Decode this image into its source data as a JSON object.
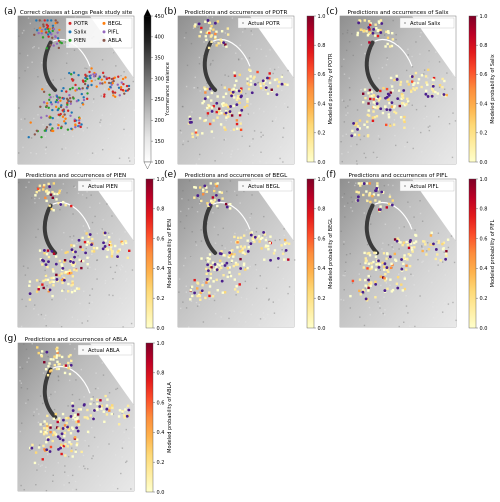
{
  "chart_data": [
    {
      "panel": "(a)",
      "type": "scatter",
      "title": "Correct classes at Longs Peak study site",
      "legend": [
        "POTR",
        "Salix",
        "PIEN",
        "BEGL",
        "PIFL",
        "ABLA"
      ],
      "legend_colors": [
        "#d62728",
        "#1f77b4",
        "#2ca02c",
        "#ff7f0e",
        "#9467bd",
        "#8c564b"
      ],
      "colorbar": {
        "label": "Ycomerance rasience",
        "ticks": [
          450,
          400,
          350,
          300,
          250,
          200,
          150,
          100
        ],
        "range": [
          100,
          450
        ]
      }
    },
    {
      "panel": "(b)",
      "type": "scatter",
      "title": "Predictions and occurrences of POTR",
      "legend": [
        "Actual POTR"
      ],
      "colorbar": {
        "label": "Modeled probability of POTR",
        "ticks": [
          1.0,
          0.8,
          0.6,
          0.4,
          0.2,
          0.0
        ],
        "range": [
          0,
          1
        ]
      }
    },
    {
      "panel": "(c)",
      "type": "scatter",
      "title": "Predictions and occurrences of Salix",
      "legend": [
        "Actual Salix"
      ],
      "colorbar": {
        "label": "Modeled probability of Salix",
        "ticks": [
          1.0,
          0.8,
          0.6,
          0.4,
          0.2,
          0.0
        ],
        "range": [
          0,
          1
        ]
      }
    },
    {
      "panel": "(d)",
      "type": "scatter",
      "title": "Predictions and occurrences of PIEN",
      "legend": [
        "Actual PIEN"
      ],
      "colorbar": {
        "label": "Modeled probability of PIEN",
        "ticks": [
          1.0,
          0.8,
          0.6,
          0.4,
          0.2,
          0.0
        ],
        "range": [
          0,
          1
        ]
      }
    },
    {
      "panel": "(e)",
      "type": "scatter",
      "title": "Predictions and occurrences of BEGL",
      "legend": [
        "Actual BEGL"
      ],
      "colorbar": {
        "label": "Modeled probability of BEGL",
        "ticks": [
          1.0,
          0.8,
          0.6,
          0.4,
          0.2,
          0.0
        ],
        "range": [
          0,
          1
        ]
      }
    },
    {
      "panel": "(f)",
      "type": "scatter",
      "title": "Predictions and occurrences of PIFL",
      "legend": [
        "Actual PIFL"
      ],
      "colorbar": {
        "label": "Modeled probability of PIFL",
        "ticks": [
          1.0,
          0.8,
          0.6,
          0.4,
          0.2,
          0.0
        ],
        "range": [
          0,
          1
        ]
      }
    },
    {
      "panel": "(g)",
      "type": "scatter",
      "title": "Predictions and occurrences of ABLA",
      "legend": [
        "Actual ABLA"
      ],
      "colorbar": {
        "label": "Modeled probability of ABLA",
        "ticks": [
          1.0,
          0.8,
          0.6,
          0.4,
          0.2,
          0.0
        ],
        "range": [
          0,
          1
        ]
      }
    }
  ],
  "colors": {
    "prob_ramp": [
      "#ffffcc",
      "#ffeda0",
      "#fed976",
      "#feb24c",
      "#fd8d3c",
      "#fc4e2a",
      "#e31a1c",
      "#bd0026",
      "#800026"
    ],
    "gray_ramp": [
      "#ffffff",
      "#e6e6e6",
      "#bdbdbd",
      "#8a8a8a",
      "#555555",
      "#222222",
      "#000000"
    ],
    "actual_marker": "#4b1f8c",
    "river": "#3a3a3a"
  }
}
